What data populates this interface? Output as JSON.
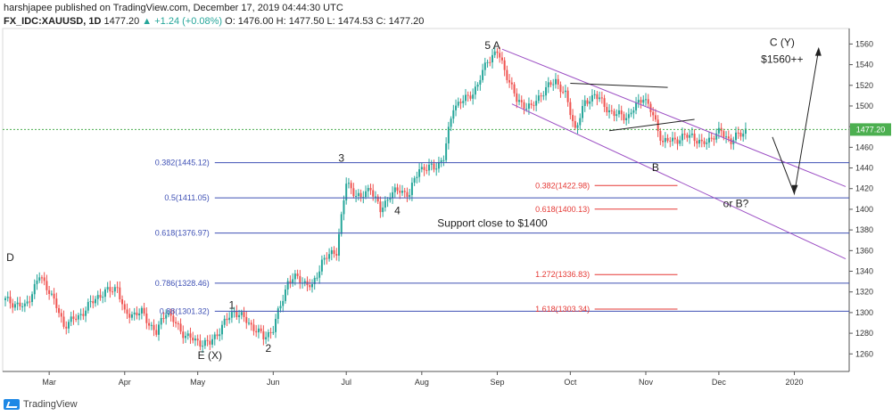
{
  "header": {
    "publisher": "harshjapee published on TradingView.com, December 17, 2019 04:44:30 UTC",
    "symbol": "FX_IDC:XAUUSD, 1D",
    "last": "1477.20",
    "change": "▲ +1.24 (+0.08%)",
    "open": "O: 1476.00",
    "high": "H: 1477.50",
    "low": "L: 1474.53",
    "close": "C: 1477.20"
  },
  "footer": {
    "brand": "TradingView"
  },
  "colors": {
    "up": "#26a69a",
    "down": "#ef5350",
    "fib": "#3f51b5",
    "ext": "#e53935",
    "channel": "#9c4fc4",
    "price": "#4caf50"
  },
  "chart_data": {
    "type": "candlestick",
    "instrument": "FX_IDC:XAUUSD",
    "timeframe": "1D",
    "x_axis": {
      "domain_days": [
        0,
        276
      ],
      "ticks": [
        {
          "label": "Mar",
          "day": 18
        },
        {
          "label": "Apr",
          "day": 49
        },
        {
          "label": "May",
          "day": 79
        },
        {
          "label": "Jun",
          "day": 110
        },
        {
          "label": "Jul",
          "day": 140
        },
        {
          "label": "Aug",
          "day": 171
        },
        {
          "label": "Sep",
          "day": 202
        },
        {
          "label": "Oct",
          "day": 232
        },
        {
          "label": "Nov",
          "day": 263
        },
        {
          "label": "Dec",
          "day": 293
        },
        {
          "label": "2020",
          "day": 324
        }
      ]
    },
    "y_axis": {
      "range": [
        1243,
        1575
      ],
      "ticks": [
        1260,
        1280,
        1300,
        1320,
        1340,
        1360,
        1380,
        1400,
        1420,
        1440,
        1460,
        1480,
        1500,
        1520,
        1540,
        1560
      ]
    },
    "last_price": {
      "value": 1477.2,
      "label": "1477.20"
    },
    "fib_retracements": [
      {
        "label": "0.382(1445.12)",
        "value": 1445.12
      },
      {
        "label": "0.5(1411.05)",
        "value": 1411.05
      },
      {
        "label": "0.618(1376.97)",
        "value": 1376.97
      },
      {
        "label": "0.786(1328.46)",
        "value": 1328.46
      },
      {
        "label": "0.88(1301.32)",
        "value": 1301.32
      }
    ],
    "fib_extensions": [
      {
        "label": "0.382(1422.98)",
        "value": 1422.98
      },
      {
        "label": "0.618(1400.13)",
        "value": 1400.13
      },
      {
        "label": "1.272(1336.83)",
        "value": 1336.83
      },
      {
        "label": "1.618(1303.34)",
        "value": 1303.34
      }
    ],
    "wave_labels": [
      {
        "text": "D",
        "day": 2,
        "price": 1350
      },
      {
        "text": "E (X)",
        "day": 84,
        "price": 1255
      },
      {
        "text": "1",
        "day": 93,
        "price": 1304
      },
      {
        "text": "2",
        "day": 108,
        "price": 1262
      },
      {
        "text": "3",
        "day": 138,
        "price": 1446
      },
      {
        "text": "4",
        "day": 161,
        "price": 1395
      },
      {
        "text": "5 A",
        "day": 200,
        "price": 1555
      },
      {
        "text": "B",
        "day": 267,
        "price": 1437
      },
      {
        "text": "C (Y)",
        "day": 319,
        "price": 1558
      },
      {
        "text": "$1560++",
        "day": 319,
        "price": 1542
      },
      {
        "text": "or B?",
        "day": 300,
        "price": 1402
      }
    ],
    "annotations": [
      {
        "text": "Support close to $1400",
        "day": 200,
        "price": 1383
      }
    ]
  }
}
